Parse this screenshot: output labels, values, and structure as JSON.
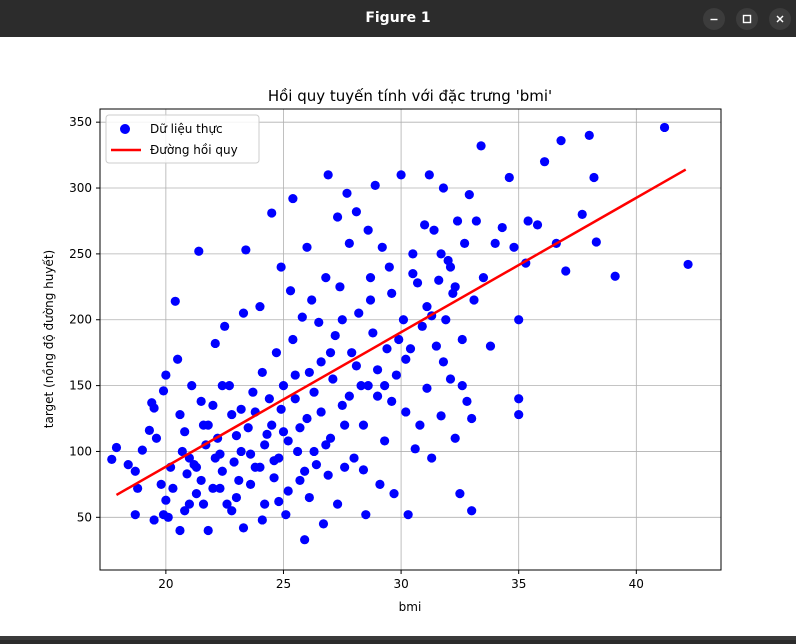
{
  "window": {
    "title": "Figure 1"
  },
  "icons": {
    "minimize": "minimize-icon",
    "maximize": "maximize-icon",
    "close": "close-icon"
  },
  "colors": {
    "titlebar": "#2c2c2c",
    "points": "#0000ff",
    "line": "#ff0000",
    "grid": "#b0b0b0"
  },
  "chart_data": {
    "type": "scatter",
    "title": "Hồi quy tuyến tính với đặc trưng 'bmi'",
    "xlabel": "bmi",
    "ylabel": "target (nồng độ đường huyết)",
    "xlim": [
      17.2,
      43.6
    ],
    "ylim": [
      10,
      360
    ],
    "xticks": [
      20,
      25,
      30,
      35,
      40
    ],
    "yticks": [
      50,
      100,
      150,
      200,
      250,
      300,
      350
    ],
    "grid": true,
    "legend_position": "top-left",
    "series": [
      {
        "name": "Dữ liệu thực",
        "kind": "scatter",
        "color": "#0000ff",
        "points": [
          [
            17.9,
            103
          ],
          [
            17.7,
            94
          ],
          [
            18.4,
            90
          ],
          [
            18.7,
            85
          ],
          [
            18.8,
            72
          ],
          [
            18.7,
            52
          ],
          [
            19.0,
            101
          ],
          [
            19.3,
            116
          ],
          [
            19.4,
            137
          ],
          [
            19.5,
            133
          ],
          [
            19.8,
            75
          ],
          [
            19.9,
            146
          ],
          [
            19.5,
            48
          ],
          [
            19.9,
            52
          ],
          [
            20.0,
            63
          ],
          [
            20.1,
            50
          ],
          [
            20.3,
            72
          ],
          [
            20.0,
            158
          ],
          [
            20.4,
            214
          ],
          [
            20.5,
            170
          ],
          [
            20.6,
            40
          ],
          [
            20.8,
            55
          ],
          [
            20.8,
            115
          ],
          [
            20.9,
            83
          ],
          [
            21.0,
            95
          ],
          [
            21.1,
            150
          ],
          [
            21.2,
            90
          ],
          [
            21.3,
            68
          ],
          [
            21.4,
            252
          ],
          [
            21.5,
            138
          ],
          [
            21.6,
            120
          ],
          [
            21.7,
            105
          ],
          [
            21.6,
            60
          ],
          [
            21.8,
            40
          ],
          [
            22.0,
            135
          ],
          [
            22.1,
            95
          ],
          [
            22.1,
            182
          ],
          [
            22.2,
            110
          ],
          [
            22.3,
            72
          ],
          [
            22.4,
            85
          ],
          [
            22.5,
            195
          ],
          [
            22.7,
            150
          ],
          [
            22.8,
            128
          ],
          [
            22.9,
            92
          ],
          [
            22.8,
            55
          ],
          [
            23.0,
            65
          ],
          [
            23.2,
            100
          ],
          [
            23.3,
            42
          ],
          [
            23.3,
            205
          ],
          [
            23.4,
            253
          ],
          [
            23.5,
            118
          ],
          [
            23.6,
            75
          ],
          [
            23.7,
            145
          ],
          [
            23.8,
            88
          ],
          [
            24.0,
            210
          ],
          [
            24.1,
            160
          ],
          [
            24.2,
            105
          ],
          [
            24.1,
            48
          ],
          [
            24.4,
            140
          ],
          [
            24.5,
            120
          ],
          [
            24.6,
            93
          ],
          [
            24.7,
            175
          ],
          [
            24.8,
            62
          ],
          [
            24.9,
            132
          ],
          [
            24.5,
            281
          ],
          [
            24.9,
            240
          ],
          [
            25.0,
            150
          ],
          [
            25.1,
            52
          ],
          [
            25.2,
            108
          ],
          [
            25.3,
            222
          ],
          [
            25.4,
            185
          ],
          [
            25.5,
            158
          ],
          [
            25.6,
            100
          ],
          [
            25.7,
            78
          ],
          [
            25.8,
            202
          ],
          [
            25.4,
            292
          ],
          [
            25.9,
            33
          ],
          [
            26.0,
            255
          ],
          [
            26.0,
            125
          ],
          [
            26.1,
            65
          ],
          [
            26.2,
            215
          ],
          [
            26.3,
            145
          ],
          [
            26.4,
            90
          ],
          [
            26.5,
            198
          ],
          [
            26.6,
            168
          ],
          [
            26.7,
            45
          ],
          [
            26.8,
            232
          ],
          [
            26.9,
            310
          ],
          [
            27.0,
            110
          ],
          [
            27.1,
            155
          ],
          [
            27.2,
            188
          ],
          [
            27.3,
            278
          ],
          [
            27.4,
            225
          ],
          [
            27.5,
            135
          ],
          [
            27.6,
            88
          ],
          [
            27.7,
            296
          ],
          [
            27.8,
            258
          ],
          [
            27.9,
            175
          ],
          [
            28.0,
            95
          ],
          [
            28.1,
            282
          ],
          [
            28.2,
            205
          ],
          [
            28.3,
            150
          ],
          [
            28.4,
            120
          ],
          [
            28.5,
            52
          ],
          [
            28.6,
            268
          ],
          [
            28.7,
            232
          ],
          [
            28.8,
            190
          ],
          [
            28.9,
            302
          ],
          [
            29.0,
            142
          ],
          [
            29.1,
            75
          ],
          [
            29.2,
            255
          ],
          [
            29.3,
            108
          ],
          [
            29.4,
            178
          ],
          [
            29.5,
            240
          ],
          [
            29.6,
            220
          ],
          [
            29.7,
            68
          ],
          [
            29.8,
            158
          ],
          [
            30.0,
            310
          ],
          [
            30.1,
            200
          ],
          [
            30.2,
            130
          ],
          [
            30.3,
            52
          ],
          [
            30.4,
            178
          ],
          [
            30.5,
            250
          ],
          [
            30.6,
            102
          ],
          [
            30.7,
            228
          ],
          [
            30.9,
            195
          ],
          [
            31.0,
            272
          ],
          [
            31.1,
            148
          ],
          [
            31.2,
            310
          ],
          [
            31.3,
            95
          ],
          [
            31.4,
            268
          ],
          [
            31.5,
            180
          ],
          [
            31.6,
            230
          ],
          [
            31.7,
            127
          ],
          [
            31.8,
            300
          ],
          [
            31.9,
            200
          ],
          [
            32.0,
            245
          ],
          [
            32.1,
            155
          ],
          [
            32.2,
            220
          ],
          [
            32.3,
            110
          ],
          [
            32.4,
            275
          ],
          [
            32.5,
            68
          ],
          [
            32.6,
            185
          ],
          [
            32.7,
            258
          ],
          [
            32.8,
            138
          ],
          [
            32.9,
            295
          ],
          [
            33.0,
            55
          ],
          [
            33.1,
            215
          ],
          [
            33.2,
            275
          ],
          [
            33.4,
            332
          ],
          [
            33.5,
            232
          ],
          [
            33.8,
            180
          ],
          [
            34.0,
            258
          ],
          [
            34.3,
            270
          ],
          [
            34.6,
            308
          ],
          [
            34.8,
            255
          ],
          [
            35.0,
            200
          ],
          [
            35.0,
            140
          ],
          [
            35.0,
            128
          ],
          [
            35.3,
            243
          ],
          [
            35.4,
            275
          ],
          [
            35.8,
            272
          ],
          [
            36.1,
            320
          ],
          [
            36.6,
            258
          ],
          [
            36.8,
            336
          ],
          [
            37.0,
            237
          ],
          [
            37.7,
            280
          ],
          [
            38.0,
            340
          ],
          [
            38.2,
            308
          ],
          [
            38.3,
            259
          ],
          [
            39.1,
            233
          ],
          [
            41.2,
            346
          ],
          [
            42.2,
            242
          ],
          [
            19.6,
            110
          ],
          [
            20.6,
            128
          ],
          [
            21.3,
            88
          ],
          [
            22.0,
            72
          ],
          [
            22.6,
            60
          ],
          [
            23.1,
            78
          ],
          [
            23.6,
            98
          ],
          [
            24.3,
            113
          ],
          [
            24.6,
            80
          ],
          [
            25.2,
            70
          ],
          [
            25.7,
            118
          ],
          [
            26.3,
            100
          ],
          [
            26.9,
            82
          ],
          [
            27.3,
            60
          ],
          [
            27.8,
            142
          ],
          [
            28.4,
            86
          ],
          [
            29.0,
            162
          ],
          [
            29.6,
            138
          ],
          [
            30.2,
            170
          ],
          [
            30.8,
            120
          ],
          [
            31.3,
            203
          ],
          [
            31.8,
            168
          ],
          [
            32.1,
            240
          ],
          [
            32.6,
            150
          ],
          [
            33.0,
            125
          ],
          [
            20.2,
            88
          ],
          [
            21.0,
            60
          ],
          [
            21.8,
            120
          ],
          [
            22.4,
            150
          ],
          [
            23.0,
            112
          ],
          [
            23.8,
            130
          ],
          [
            24.2,
            60
          ],
          [
            24.8,
            95
          ],
          [
            25.5,
            140
          ],
          [
            26.1,
            160
          ],
          [
            26.6,
            130
          ],
          [
            27.0,
            175
          ],
          [
            27.5,
            200
          ],
          [
            28.1,
            165
          ],
          [
            28.7,
            215
          ],
          [
            29.3,
            150
          ],
          [
            29.9,
            185
          ],
          [
            30.5,
            235
          ],
          [
            31.1,
            210
          ],
          [
            31.7,
            250
          ],
          [
            32.3,
            225
          ],
          [
            20.7,
            100
          ],
          [
            21.5,
            78
          ],
          [
            22.3,
            98
          ],
          [
            23.2,
            132
          ],
          [
            24.0,
            88
          ],
          [
            25.0,
            115
          ],
          [
            25.9,
            85
          ],
          [
            26.8,
            105
          ],
          [
            27.6,
            120
          ],
          [
            28.6,
            150
          ]
        ]
      },
      {
        "name": "Đường hồi quy",
        "kind": "line",
        "color": "#ff0000",
        "points": [
          [
            17.9,
            67
          ],
          [
            42.1,
            314
          ]
        ]
      }
    ]
  }
}
